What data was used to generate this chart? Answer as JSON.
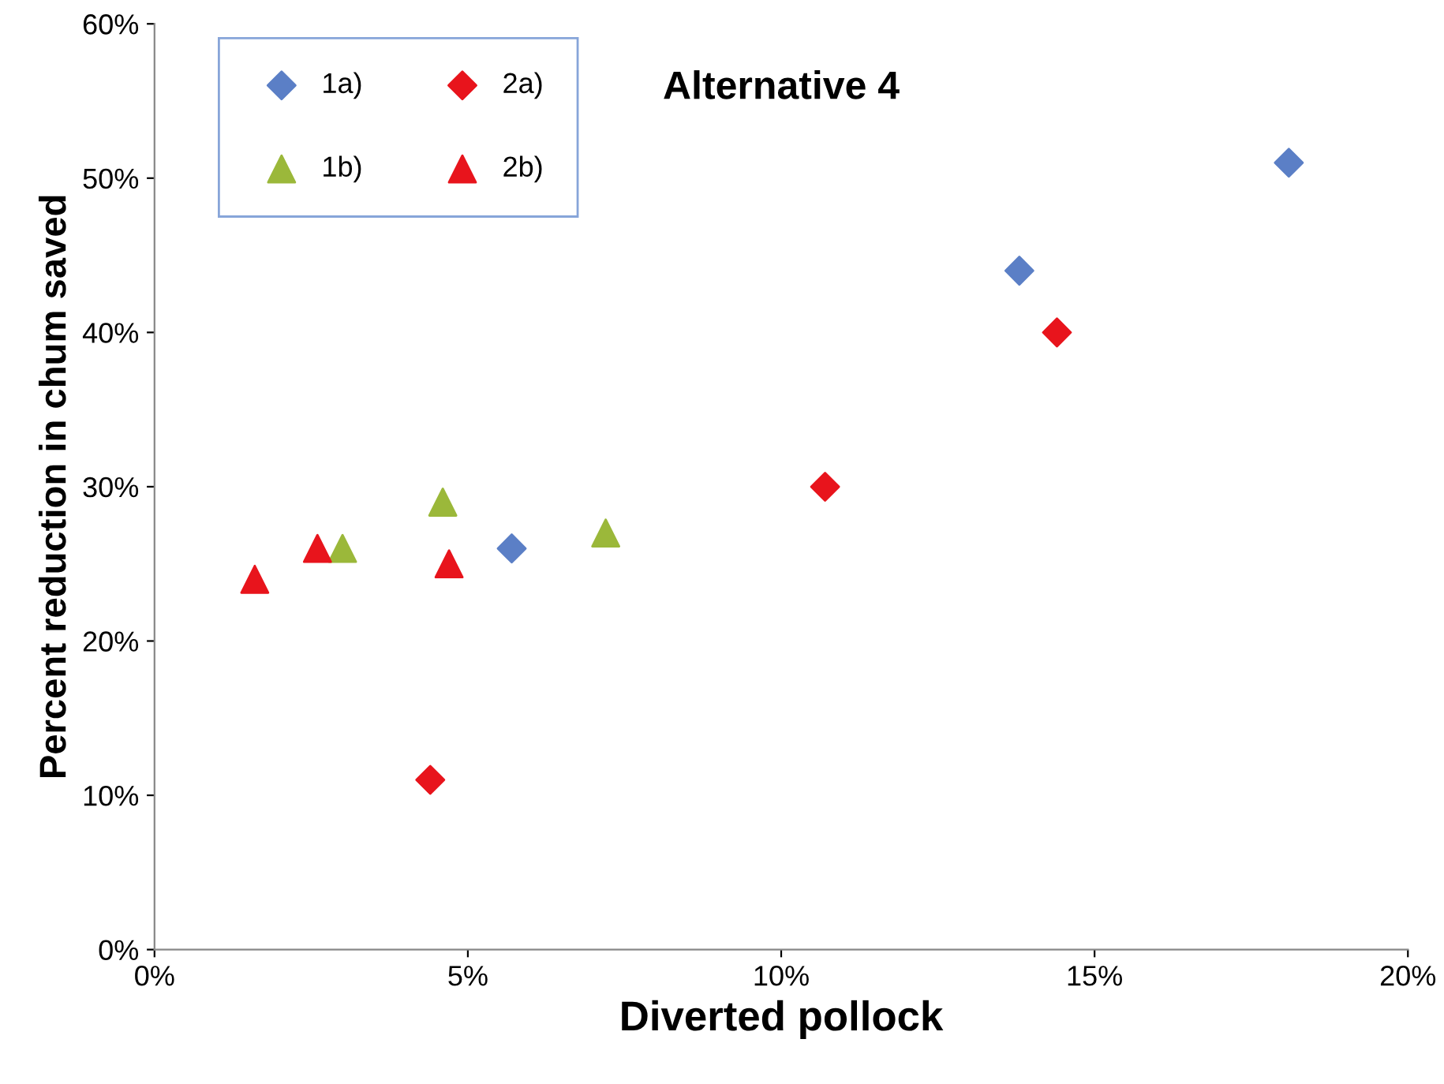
{
  "chart_data": {
    "type": "scatter",
    "title": "Alternative 4",
    "xlabel": "Diverted pollock",
    "ylabel": "Percent reduction in chum saved",
    "xlim": [
      0,
      20
    ],
    "ylim": [
      0,
      60
    ],
    "xticks": [
      {
        "value": 0,
        "label": "0%"
      },
      {
        "value": 5,
        "label": "5%"
      },
      {
        "value": 10,
        "label": "10%"
      },
      {
        "value": 15,
        "label": "15%"
      },
      {
        "value": 20,
        "label": "20%"
      }
    ],
    "yticks": [
      {
        "value": 0,
        "label": "0%"
      },
      {
        "value": 10,
        "label": "10%"
      },
      {
        "value": 20,
        "label": "20%"
      },
      {
        "value": 30,
        "label": "30%"
      },
      {
        "value": 40,
        "label": "40%"
      },
      {
        "value": 50,
        "label": "50%"
      },
      {
        "value": 60,
        "label": "60%"
      }
    ],
    "grid": false,
    "legend": "top left",
    "series": [
      {
        "name": "1a)",
        "color": "#5b7fc6",
        "marker": "diamond",
        "x": [
          5.7,
          13.8,
          18.1
        ],
        "values": [
          26,
          44,
          51
        ]
      },
      {
        "name": "1b)",
        "color": "#9bb83a",
        "marker": "triangle",
        "x": [
          3.0,
          4.6,
          7.2
        ],
        "values": [
          26,
          29,
          27
        ]
      },
      {
        "name": "2a)",
        "color": "#e8141c",
        "marker": "diamond",
        "x": [
          4.4,
          10.7,
          14.4
        ],
        "values": [
          11,
          30,
          40
        ]
      },
      {
        "name": "2b)",
        "color": "#e8141c",
        "marker": "triangle",
        "x": [
          1.6,
          2.6,
          4.7
        ],
        "values": [
          24,
          26,
          25
        ]
      }
    ]
  }
}
